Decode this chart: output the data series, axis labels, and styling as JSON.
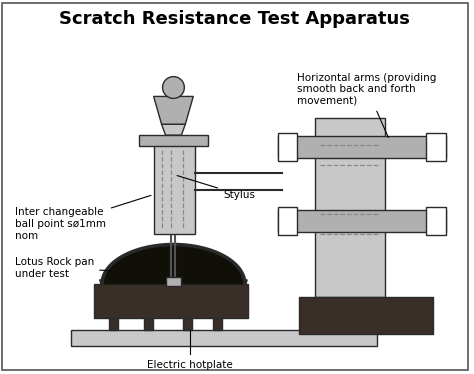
{
  "title": "Scratch Resistance Test Apparatus",
  "title_fontsize": 13,
  "background_color": "#ffffff",
  "label_stylus": "Stylus",
  "label_inter": "Inter changeable\nball point sø1mm\nnom",
  "label_lotus": "Lotus Rock pan\nunder test",
  "label_hotplate": "Electric hotplate",
  "label_horizontal": "Horizontal arms (providing\nsmooth back and forth\nmovement)",
  "colors": {
    "light_gray": "#c8c8c8",
    "mid_gray": "#b0b0b0",
    "dark_brown": "#3a2e28",
    "white": "#ffffff",
    "black": "#000000",
    "outline": "#2a2a2a"
  }
}
